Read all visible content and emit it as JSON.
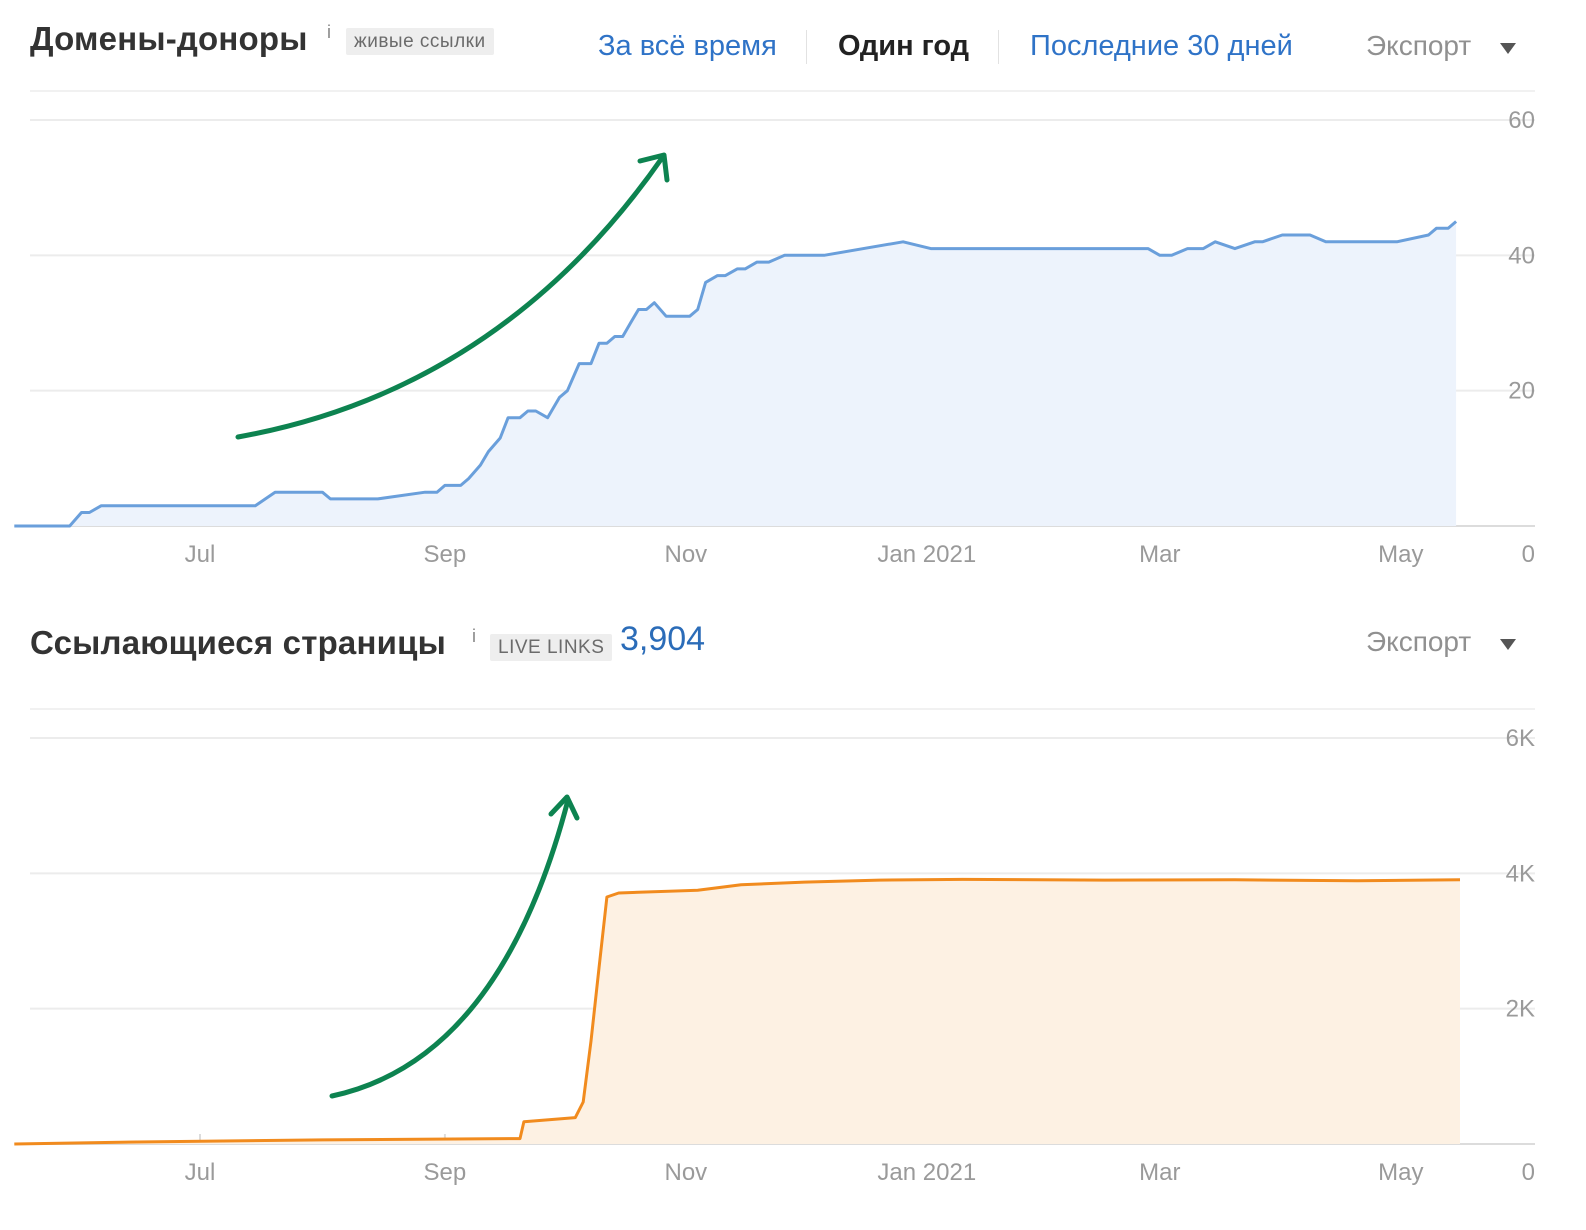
{
  "domains_panel": {
    "title": "Домены-доноры",
    "info_icon": "i",
    "badge": "живые ссылки",
    "range_tabs": [
      "За всё время",
      "Один год",
      "Последние 30 дней"
    ],
    "active_tab": "Один год",
    "export_label": "Экспорт",
    "colors": {
      "line": "#6a9fdb",
      "fill": "#edf3fc",
      "arrow": "#0d8350"
    }
  },
  "pages_panel": {
    "title": "Ссылающиеся страницы",
    "info_icon": "i",
    "badge": "LIVE LINKS",
    "total": "3,904",
    "export_label": "Экспорт",
    "colors": {
      "line": "#f18b1e",
      "fill": "#fdf1e3",
      "arrow": "#0d8350"
    }
  },
  "chart_data": [
    {
      "type": "area",
      "x_tick_labels": [
        "Jul",
        "Sep",
        "Nov",
        "Jan 2021",
        "Mar",
        "May"
      ],
      "y_tick_labels": [
        "0",
        "20",
        "40",
        "60"
      ],
      "ylim": [
        0,
        60
      ],
      "grid": true,
      "series": [
        {
          "x": [
            "2020-05-15",
            "2020-05-29",
            "2020-06-01",
            "2020-06-03",
            "2020-06-06",
            "2020-06-10",
            "2020-06-13",
            "2020-06-20",
            "2020-07-15",
            "2020-07-20",
            "2020-08-01",
            "2020-08-03",
            "2020-08-10",
            "2020-08-15",
            "2020-08-27",
            "2020-08-30",
            "2020-09-01",
            "2020-09-05",
            "2020-09-07",
            "2020-09-10",
            "2020-09-12",
            "2020-09-15",
            "2020-09-17",
            "2020-09-20",
            "2020-09-22",
            "2020-09-24",
            "2020-09-27",
            "2020-09-30",
            "2020-10-02",
            "2020-10-05",
            "2020-10-08",
            "2020-10-10",
            "2020-10-12",
            "2020-10-14",
            "2020-10-16",
            "2020-10-18",
            "2020-10-20",
            "2020-10-22",
            "2020-10-24",
            "2020-10-27",
            "2020-10-29",
            "2020-10-31",
            "2020-11-02",
            "2020-11-04",
            "2020-11-06",
            "2020-11-09",
            "2020-11-11",
            "2020-11-14",
            "2020-11-16",
            "2020-11-19",
            "2020-11-22",
            "2020-11-26",
            "2020-11-30",
            "2020-12-06",
            "2020-12-26",
            "2021-01-02",
            "2021-02-26",
            "2021-03-01",
            "2021-03-04",
            "2021-03-08",
            "2021-03-12",
            "2021-03-15",
            "2021-03-20",
            "2021-03-25",
            "2021-03-27",
            "2021-04-01",
            "2021-04-08",
            "2021-04-12",
            "2021-04-20",
            "2021-04-30",
            "2021-05-08",
            "2021-05-10",
            "2021-05-13",
            "2021-05-15"
          ],
          "y": [
            0,
            0,
            2,
            2,
            3,
            3,
            3,
            3,
            3,
            5,
            5,
            4,
            4,
            4,
            5,
            5,
            6,
            6,
            7,
            9,
            11,
            13,
            16,
            16,
            17,
            17,
            16,
            19,
            20,
            24,
            24,
            27,
            27,
            28,
            28,
            30,
            32,
            32,
            33,
            31,
            31,
            31,
            31,
            32,
            36,
            37,
            37,
            38,
            38,
            39,
            39,
            40,
            40,
            40,
            42,
            41,
            41,
            40,
            40,
            41,
            41,
            42,
            41,
            42,
            42,
            43,
            43,
            42,
            42,
            42,
            43,
            44,
            44,
            45
          ]
        }
      ]
    },
    {
      "type": "area",
      "x_tick_labels": [
        "Jul",
        "Sep",
        "Nov",
        "Jan 2021",
        "Mar",
        "May"
      ],
      "y_tick_labels": [
        "0",
        "2K",
        "4K",
        "6K"
      ],
      "ylim": [
        0,
        6000
      ],
      "grid": true,
      "series": [
        {
          "x": [
            "2020-05-15",
            "2020-06-15",
            "2020-08-01",
            "2020-09-20",
            "2020-09-21",
            "2020-10-04",
            "2020-10-06",
            "2020-10-08",
            "2020-10-10",
            "2020-10-12",
            "2020-10-15",
            "2020-10-20",
            "2020-11-04",
            "2020-11-15",
            "2020-12-01",
            "2020-12-20",
            "2021-01-10",
            "2021-02-15",
            "2021-03-20",
            "2021-04-20",
            "2021-05-16"
          ],
          "y": [
            0,
            30,
            60,
            80,
            330,
            390,
            620,
            1520,
            2600,
            3650,
            3710,
            3720,
            3750,
            3830,
            3870,
            3900,
            3910,
            3900,
            3905,
            3890,
            3904
          ]
        }
      ]
    }
  ]
}
